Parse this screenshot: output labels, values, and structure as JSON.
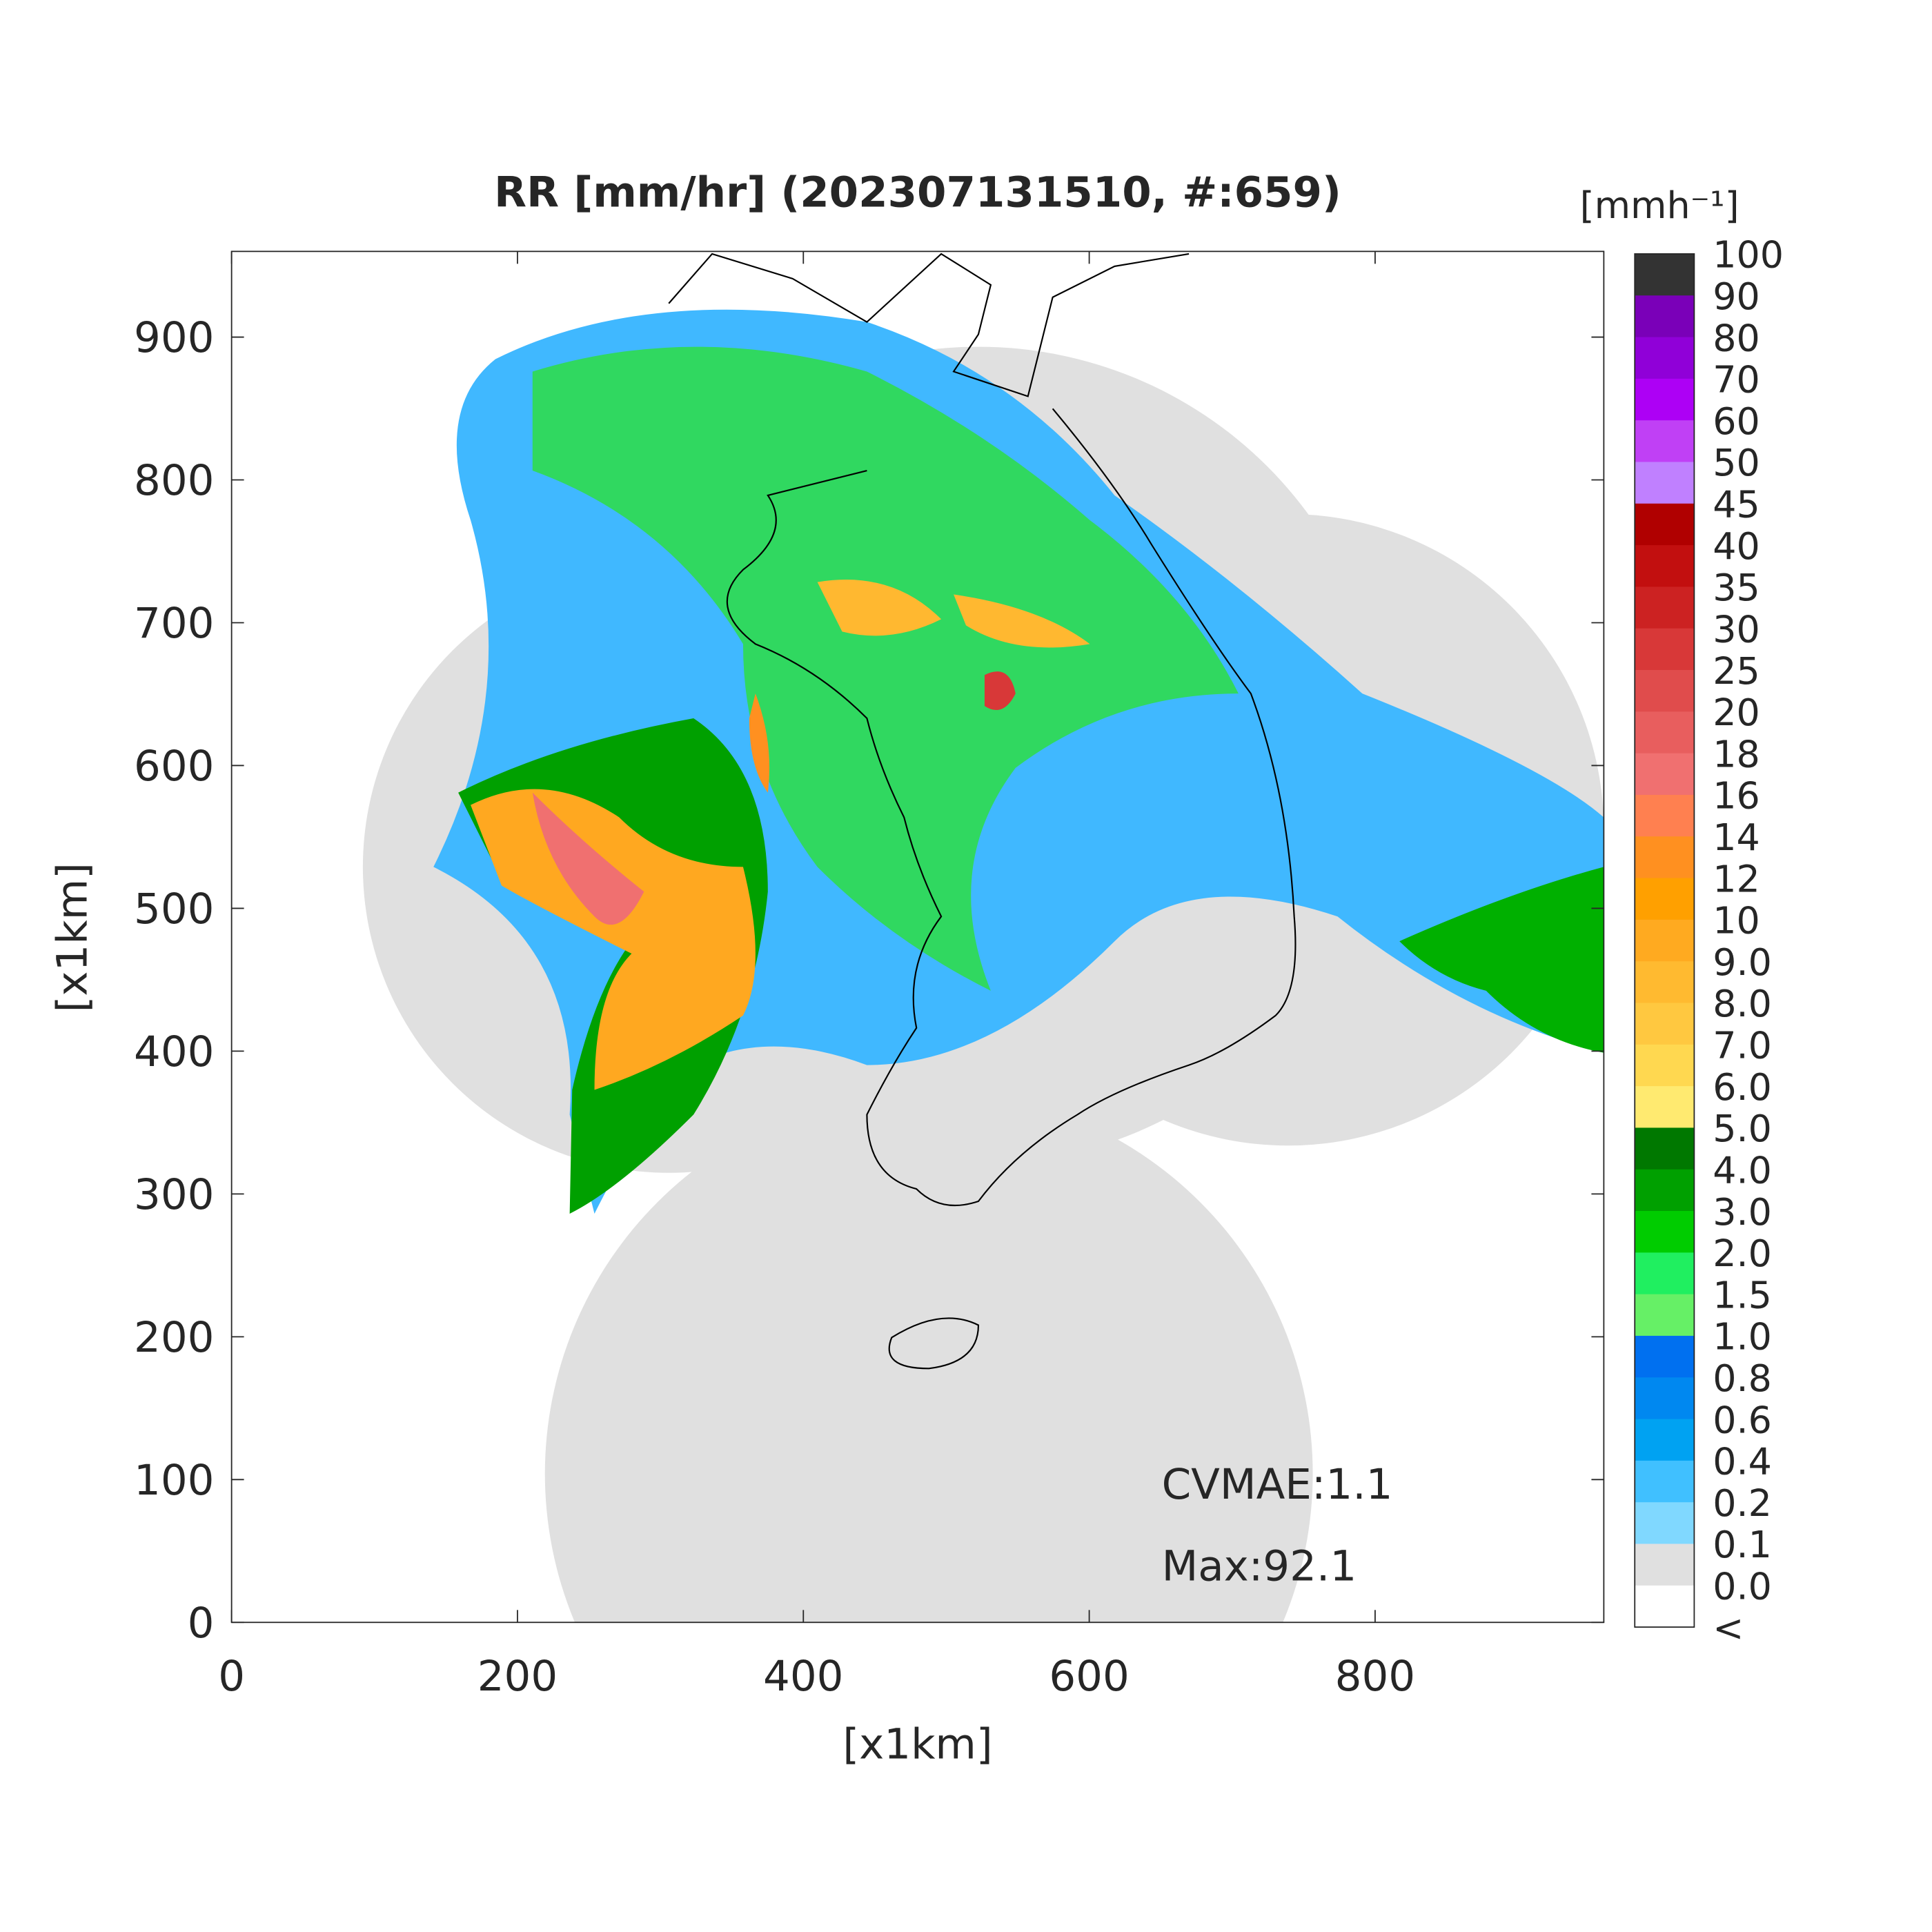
{
  "title": "RR [mm/hr] (202307131510, #:659)",
  "x_axis": {
    "label": "[x1km]",
    "lim": [
      0,
      960
    ],
    "ticks": [
      0,
      200,
      400,
      600,
      800
    ]
  },
  "y_axis": {
    "label": "[x1km]",
    "lim": [
      0,
      960
    ],
    "ticks": [
      0,
      100,
      200,
      300,
      400,
      500,
      600,
      700,
      800,
      900
    ]
  },
  "colorbar": {
    "unit": "[mmh⁻¹]",
    "levels": [
      100,
      90,
      80,
      70,
      60,
      50,
      45,
      40,
      35,
      30,
      25,
      20,
      18,
      16,
      14,
      12,
      10,
      {
        "value": 9,
        "label": "9.0"
      },
      {
        "value": 8,
        "label": "8.0"
      },
      {
        "value": 7,
        "label": "7.0"
      },
      {
        "value": 6,
        "label": "6.0"
      },
      {
        "value": 5,
        "label": "5.0"
      },
      {
        "value": 4,
        "label": "4.0"
      },
      {
        "value": 3,
        "label": "3.0"
      },
      {
        "value": 2,
        "label": "2.0"
      },
      1.5,
      {
        "value": 1,
        "label": "1.0"
      },
      0.8,
      0.6,
      0.4,
      0.2,
      0.1,
      {
        "value": 0,
        "label": "0.0"
      }
    ],
    "under_label": "<",
    "colors": [
      "#333333",
      "#7a00b8",
      "#9000d8",
      "#ad00f5",
      "#c040f5",
      "#c080ff",
      "#b00000",
      "#c20f0f",
      "#cc2222",
      "#d83838",
      "#e04c4c",
      "#e85e5e",
      "#f07070",
      "#ff8050",
      "#ff9020",
      "#ffa000",
      "#ffaa20",
      "#ffba30",
      "#ffc840",
      "#ffd850",
      "#ffea70",
      "#007800",
      "#00a000",
      "#00cc00",
      "#20ef60",
      "#66f066",
      "#0070f0",
      "#0088f0",
      "#00a2f2",
      "#40c0ff",
      "#80d8ff",
      "#e0e0e0",
      "#ffffff"
    ]
  },
  "annotations": [
    "CVMAE:1.1",
    "Max:92.1"
  ]
}
